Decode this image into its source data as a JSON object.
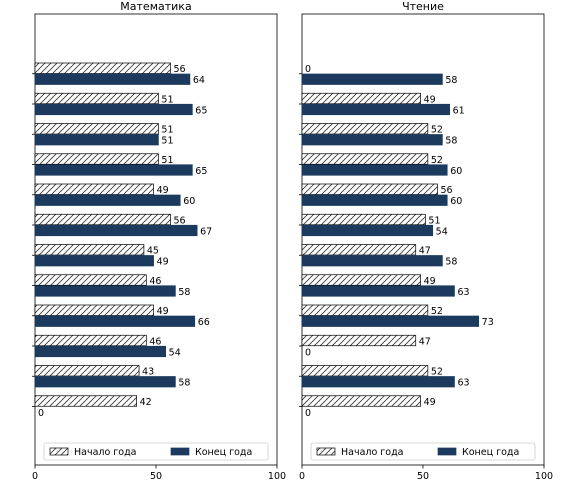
{
  "chart_data": [
    {
      "type": "bar",
      "orientation": "horizontal",
      "title": "Математика",
      "xlabel": "",
      "ylabel": "",
      "xlim": [
        0,
        100
      ],
      "x_ticks": [
        0,
        50,
        100
      ],
      "categories": [
        "",
        "",
        "",
        "",
        "",
        "",
        "",
        "",
        "",
        "",
        "",
        ""
      ],
      "series": [
        {
          "name": "Начало года",
          "values": [
            56,
            51,
            51,
            51,
            49,
            56,
            45,
            46,
            49,
            46,
            43,
            42
          ]
        },
        {
          "name": "Конец года",
          "values": [
            64,
            65,
            51,
            65,
            60,
            67,
            49,
            58,
            66,
            54,
            58,
            0
          ]
        }
      ],
      "legend": "bottom"
    },
    {
      "type": "bar",
      "orientation": "horizontal",
      "title": "Чтение",
      "xlabel": "",
      "ylabel": "",
      "xlim": [
        0,
        100
      ],
      "x_ticks": [
        0,
        50,
        100
      ],
      "categories": [
        "",
        "",
        "",
        "",
        "",
        "",
        "",
        "",
        "",
        "",
        "",
        ""
      ],
      "series": [
        {
          "name": "Начало года",
          "values": [
            0,
            49,
            52,
            52,
            56,
            51,
            47,
            49,
            52,
            47,
            52,
            49
          ]
        },
        {
          "name": "Конец года",
          "values": [
            58,
            61,
            58,
            60,
            60,
            54,
            58,
            63,
            73,
            0,
            63,
            0
          ]
        }
      ],
      "legend": "bottom"
    }
  ],
  "colors": {
    "start_of_year": "#ffffff",
    "end_of_year": "#1c3a5e",
    "axis": "#000000"
  }
}
